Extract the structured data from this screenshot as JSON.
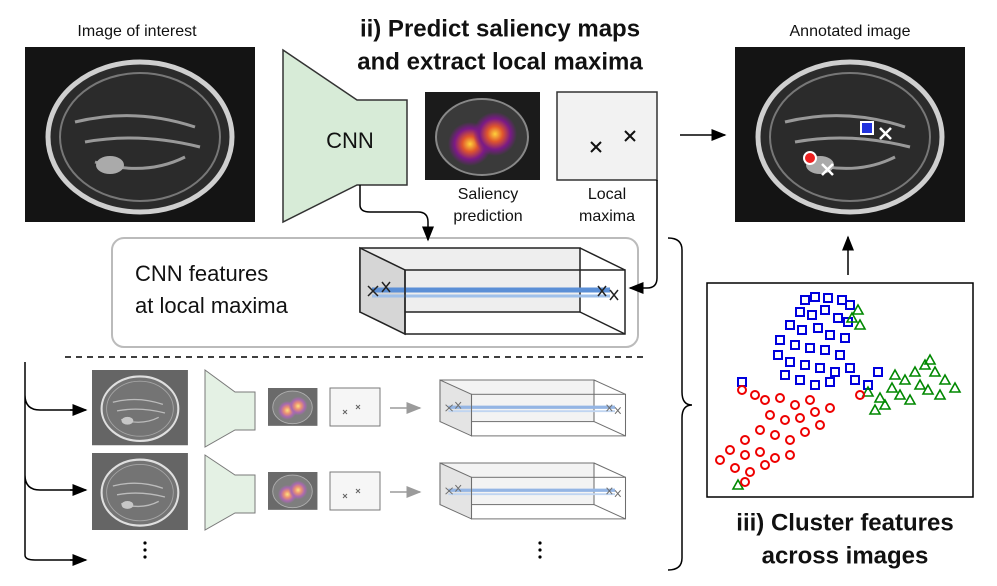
{
  "labels": {
    "input_image": "Image of interest",
    "output_image": "Annotated image"
  },
  "step2": {
    "title_lines": [
      "ii) Predict saliency maps",
      "and extract local maxima"
    ],
    "cnn": "CNN",
    "saliency_lines": [
      "Saliency",
      "prediction"
    ],
    "maxima_lines": [
      "Local",
      "maxima"
    ]
  },
  "features": {
    "lines": [
      "CNN features",
      "at local maxima"
    ]
  },
  "step3": {
    "title_lines": [
      "iii) Cluster features",
      "across images"
    ]
  }
}
